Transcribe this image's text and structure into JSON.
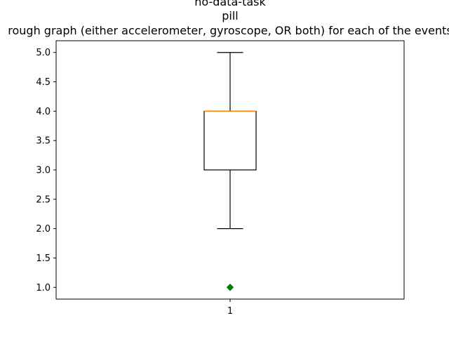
{
  "chart_data": {
    "type": "box",
    "title_lines": [
      "no-data-task",
      "pill",
      "rough graph (either accelerometer, gyroscope, OR both) for each of the events"
    ],
    "categories": [
      "1"
    ],
    "ylim": [
      0.8,
      5.2
    ],
    "yticks": [
      1.0,
      1.5,
      2.0,
      2.5,
      3.0,
      3.5,
      4.0,
      4.5,
      5.0
    ],
    "ytick_labels": [
      "1.0",
      "1.5",
      "2.0",
      "2.5",
      "3.0",
      "3.5",
      "4.0",
      "4.5",
      "5.0"
    ],
    "boxes": [
      {
        "category": "1",
        "whisker_low": 2.0,
        "q1": 3.0,
        "median": 4.0,
        "q3": 4.0,
        "whisker_high": 5.0,
        "outliers": [
          1.0
        ]
      }
    ],
    "grid": false,
    "colors": {
      "median": "#ff7f0e",
      "outlier": "#008000",
      "box": "#000000"
    }
  }
}
